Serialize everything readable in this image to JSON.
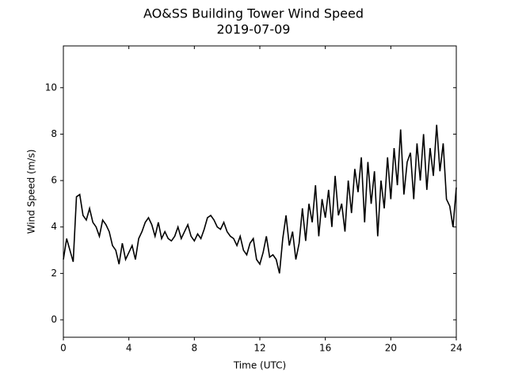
{
  "chart_data": {
    "type": "line",
    "title": "AO&SS Building Tower Wind Speed",
    "subtitle": "2019-07-09",
    "x_label": "Time (UTC)",
    "y_label": "Wind Speed (m/s)",
    "xlim": [
      0,
      24
    ],
    "xticks": [
      0,
      4,
      8,
      12,
      16,
      20,
      24
    ],
    "ylim": [
      -0.75,
      11.8
    ],
    "yticks": [
      0,
      2,
      4,
      6,
      8,
      10
    ],
    "grid": false,
    "x": [
      0,
      0.2,
      0.4,
      0.6,
      0.8,
      1,
      1.2,
      1.4,
      1.6,
      1.8,
      2,
      2.2,
      2.4,
      2.6,
      2.8,
      3,
      3.2,
      3.4,
      3.6,
      3.8,
      4,
      4.2,
      4.4,
      4.6,
      4.8,
      5,
      5.2,
      5.4,
      5.6,
      5.8,
      6,
      6.2,
      6.4,
      6.6,
      6.8,
      7,
      7.2,
      7.4,
      7.6,
      7.8,
      8,
      8.2,
      8.4,
      8.6,
      8.8,
      9,
      9.2,
      9.4,
      9.6,
      9.8,
      10,
      10.2,
      10.4,
      10.6,
      10.8,
      11,
      11.2,
      11.4,
      11.6,
      11.8,
      12,
      12.2,
      12.4,
      12.6,
      12.8,
      13,
      13.2,
      13.4,
      13.6,
      13.8,
      14,
      14.2,
      14.4,
      14.6,
      14.8,
      15,
      15.2,
      15.4,
      15.6,
      15.8,
      16,
      16.2,
      16.4,
      16.6,
      16.8,
      17,
      17.2,
      17.4,
      17.6,
      17.8,
      18,
      18.2,
      18.4,
      18.6,
      18.8,
      19,
      19.2,
      19.4,
      19.6,
      19.8,
      20,
      20.2,
      20.4,
      20.6,
      20.8,
      21,
      21.2,
      21.4,
      21.6,
      21.8,
      22,
      22.2,
      22.4,
      22.6,
      22.8,
      23,
      23.2,
      23.4,
      23.6,
      23.8,
      24
    ],
    "series": [
      {
        "name": "Wind Speed",
        "color": "#000000",
        "values": [
          2.6,
          3.5,
          3.0,
          2.5,
          5.3,
          5.4,
          4.5,
          4.3,
          4.8,
          4.2,
          4.0,
          3.6,
          4.3,
          4.1,
          3.8,
          3.2,
          3.0,
          2.4,
          3.3,
          2.6,
          2.9,
          3.2,
          2.6,
          3.5,
          3.8,
          4.2,
          4.4,
          4.1,
          3.6,
          4.2,
          3.5,
          3.8,
          3.5,
          3.4,
          3.6,
          4.0,
          3.5,
          3.8,
          4.1,
          3.6,
          3.4,
          3.7,
          3.5,
          3.9,
          4.4,
          4.5,
          4.3,
          4.0,
          3.9,
          4.2,
          3.8,
          3.6,
          3.5,
          3.2,
          3.6,
          3.0,
          2.8,
          3.3,
          3.5,
          2.6,
          2.4,
          2.9,
          3.6,
          2.7,
          2.8,
          2.6,
          2.0,
          3.5,
          4.5,
          3.2,
          3.8,
          2.6,
          3.3,
          4.8,
          3.4,
          5.0,
          4.2,
          5.8,
          3.6,
          5.2,
          4.4,
          5.6,
          4.0,
          6.2,
          4.5,
          5.0,
          3.8,
          6.0,
          4.6,
          6.5,
          5.5,
          7.0,
          4.2,
          6.8,
          5.0,
          6.4,
          3.6,
          6.0,
          4.8,
          7.0,
          5.2,
          7.4,
          5.8,
          8.2,
          5.4,
          6.8,
          7.2,
          5.2,
          7.6,
          6.0,
          8.0,
          5.6,
          7.4,
          6.2,
          8.4,
          6.4,
          7.6,
          5.2,
          4.9,
          4.0,
          5.7
        ]
      }
    ]
  }
}
